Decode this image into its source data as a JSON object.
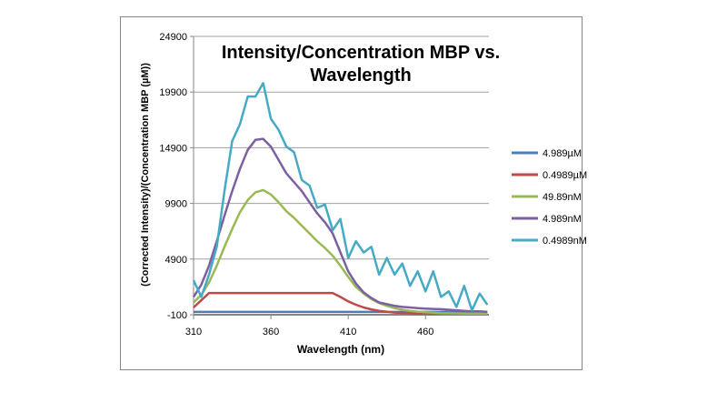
{
  "chart_data": {
    "type": "line",
    "title": "Intensity/Concentration MBP vs. Wavelength",
    "title_lines": [
      "Intensity/Concentration MBP vs.",
      "Wavelength"
    ],
    "xlabel": "Wavelength (nm)",
    "ylabel": "(Corrected Intensity)/(Concentration MBP (µM))",
    "xlim": [
      310,
      501
    ],
    "ylim": [
      -100,
      24900
    ],
    "x_ticks": [
      "310",
      "360",
      "410",
      "460"
    ],
    "y_ticks": [
      "24900",
      "19900",
      "14900",
      "9900",
      "4900",
      "-100"
    ],
    "grid": true,
    "legend_position": "right",
    "x": [
      310,
      315,
      320,
      325,
      330,
      335,
      340,
      345,
      350,
      355,
      360,
      365,
      370,
      375,
      380,
      385,
      390,
      395,
      400,
      405,
      410,
      415,
      420,
      425,
      430,
      435,
      440,
      445,
      450,
      455,
      460,
      465,
      470,
      475,
      480,
      485,
      490,
      495,
      500
    ],
    "series": [
      {
        "name": "4.989µM",
        "color": "#4a7ebb",
        "values": [
          150,
          150,
          150,
          150,
          150,
          150,
          150,
          150,
          150,
          150,
          150,
          150,
          150,
          150,
          150,
          150,
          150,
          150,
          150,
          150,
          150,
          150,
          150,
          150,
          150,
          150,
          150,
          150,
          150,
          150,
          150,
          150,
          150,
          150,
          150,
          150,
          150,
          150,
          150
        ]
      },
      {
        "name": "0.4989µM",
        "color": "#be4b48",
        "values": [
          550,
          1200,
          1850,
          1850,
          1850,
          1850,
          1850,
          1850,
          1850,
          1850,
          1850,
          1850,
          1850,
          1850,
          1850,
          1850,
          1850,
          1850,
          1850,
          1500,
          1100,
          800,
          550,
          380,
          250,
          160,
          100,
          60,
          30,
          10,
          0,
          0,
          0,
          0,
          0,
          0,
          0,
          0,
          0
        ]
      },
      {
        "name": "49.89nM",
        "color": "#98b954",
        "values": [
          1000,
          1700,
          2800,
          4300,
          6000,
          7600,
          9100,
          10200,
          10900,
          11100,
          10700,
          10000,
          9200,
          8600,
          7900,
          7200,
          6500,
          5900,
          5200,
          4300,
          3300,
          2400,
          1800,
          1300,
          950,
          700,
          500,
          350,
          250,
          180,
          120,
          80,
          50,
          30,
          20,
          10,
          0,
          0,
          0
        ]
      },
      {
        "name": "4.989nM",
        "color": "#7d60a0",
        "values": [
          1500,
          2600,
          4300,
          6500,
          8800,
          11000,
          13000,
          14700,
          15600,
          15700,
          15000,
          13800,
          12600,
          11800,
          11000,
          10000,
          9000,
          8200,
          7200,
          5500,
          3800,
          2700,
          1900,
          1400,
          1000,
          850,
          700,
          600,
          550,
          500,
          450,
          420,
          400,
          350,
          300,
          250,
          200,
          200,
          150
        ]
      },
      {
        "name": "0.4989nM",
        "color": "#46aac5",
        "values": [
          3000,
          1500,
          3500,
          6000,
          11000,
          15500,
          17000,
          19500,
          19500,
          20700,
          17500,
          16500,
          15000,
          14500,
          12000,
          11500,
          9500,
          9800,
          7500,
          8500,
          5000,
          6500,
          5500,
          6000,
          3500,
          5000,
          3500,
          4500,
          2500,
          3800,
          2000,
          3800,
          1500,
          2000,
          600,
          2500,
          300,
          1800,
          800
        ]
      }
    ]
  }
}
